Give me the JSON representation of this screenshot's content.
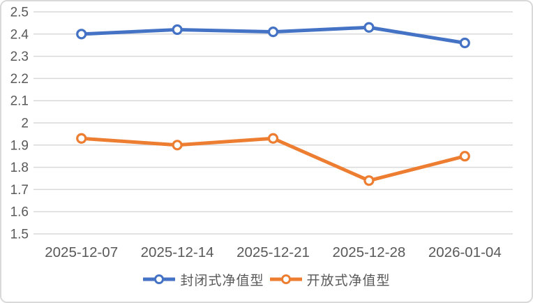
{
  "chart_data": {
    "type": "line",
    "title": "",
    "xlabel": "",
    "ylabel": "",
    "categories": [
      "2025-12-07",
      "2025-12-14",
      "2025-12-21",
      "2025-12-28",
      "2026-01-04"
    ],
    "series": [
      {
        "name": "封闭式净值型",
        "color": "#4472C4",
        "values": [
          2.4,
          2.42,
          2.41,
          2.43,
          2.36
        ]
      },
      {
        "name": "开放式净值型",
        "color": "#ED7D31",
        "values": [
          1.93,
          1.9,
          1.93,
          1.74,
          1.85
        ]
      }
    ],
    "ylim": [
      1.5,
      2.5
    ],
    "y_tick_step": 0.1,
    "y_tick_labels": [
      "1.5",
      "1.6",
      "1.7",
      "1.8",
      "1.9",
      "2",
      "2.1",
      "2.2",
      "2.3",
      "2.4",
      "2.5"
    ],
    "grid": "horizontal-only",
    "grid_color": "#d9d9d9",
    "axis_text_color": "#595959",
    "marker_style": "open-circle",
    "legend_position": "bottom"
  }
}
